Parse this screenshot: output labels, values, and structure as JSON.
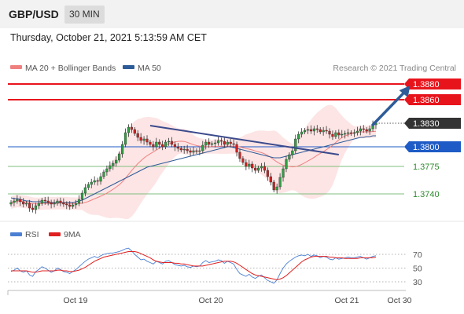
{
  "header": {
    "symbol": "GBP/USD",
    "timeframe": "30 MIN"
  },
  "timestamp": "Thursday, October 21, 2021 5:13:59 AM CET",
  "legend": {
    "ma20_bb": "MA 20 + Bollinger Bands",
    "ma50": "MA 50",
    "ma20_color": "#f08080",
    "ma50_color": "#2e5c99"
  },
  "credit": "Research © 2021 Trading Central",
  "rsi_legend": {
    "rsi": "RSI",
    "ma9": "9MA",
    "rsi_color": "#4a7fd4",
    "ma9_color": "#e02020"
  },
  "colors": {
    "resistance": "#e8141c",
    "pivot": "#1e5bc6",
    "support": "#7fbf7f",
    "support_text": "#2e8b2e",
    "current": "#333333",
    "arrow": "#2e5c99",
    "candle_up": "#2ea043",
    "candle_down": "#cc2222",
    "band_fill": "#fde0e0"
  },
  "chart_data": [
    {
      "type": "candlestick",
      "ylim": [
        3.5,
        3.89
      ],
      "x_ticks": [
        "Oct 19",
        "Oct 20",
        "Oct 21",
        "Oct 30"
      ],
      "levels": [
        {
          "label": "1.3880",
          "value": 1.388,
          "kind": "resistance"
        },
        {
          "label": "1.3860",
          "value": 1.386,
          "kind": "resistance"
        },
        {
          "label": "1.3830",
          "value": 1.383,
          "kind": "current"
        },
        {
          "label": "1.3800",
          "value": 1.38,
          "kind": "pivot"
        },
        {
          "label": "1.3775",
          "value": 1.3775,
          "kind": "support"
        },
        {
          "label": "1.3740",
          "value": 1.374,
          "kind": "support"
        }
      ],
      "close": [
        1.3729,
        1.3731,
        1.3733,
        1.373,
        1.3727,
        1.3728,
        1.3722,
        1.372,
        1.3725,
        1.3728,
        1.3732,
        1.3731,
        1.3729,
        1.3727,
        1.3728,
        1.3731,
        1.3729,
        1.3727,
        1.3726,
        1.3724,
        1.3726,
        1.3728,
        1.3733,
        1.3741,
        1.3748,
        1.3752,
        1.3755,
        1.3757,
        1.3756,
        1.3762,
        1.3768,
        1.3772,
        1.3776,
        1.3779,
        1.3783,
        1.3791,
        1.3803,
        1.3818,
        1.3825,
        1.3822,
        1.3817,
        1.3812,
        1.3808,
        1.381,
        1.3806,
        1.3803,
        1.38,
        1.3806,
        1.3803,
        1.38,
        1.3806,
        1.3807,
        1.3803,
        1.38,
        1.3798,
        1.3796,
        1.3797,
        1.3795,
        1.3793,
        1.3795,
        1.3794,
        1.3795,
        1.3802,
        1.3806,
        1.3803,
        1.3804,
        1.3805,
        1.3808,
        1.3807,
        1.3803,
        1.3806,
        1.3804,
        1.3803,
        1.3793,
        1.3785,
        1.378,
        1.3775,
        1.3778,
        1.3773,
        1.377,
        1.3773,
        1.3775,
        1.377,
        1.3762,
        1.3755,
        1.3745,
        1.3749,
        1.3761,
        1.3772,
        1.3784,
        1.379,
        1.3795,
        1.381,
        1.3816,
        1.3819,
        1.3821,
        1.3822,
        1.382,
        1.3823,
        1.3822,
        1.3819,
        1.3821,
        1.382,
        1.3816,
        1.3813,
        1.3818,
        1.3815,
        1.3816,
        1.3817,
        1.3818,
        1.3817,
        1.3818,
        1.382,
        1.3823,
        1.3822,
        1.382,
        1.3823,
        1.3828,
        1.383
      ],
      "ma50": [
        1.3735,
        1.3734,
        1.3734,
        1.3733,
        1.3732,
        1.3731,
        1.3731,
        1.373,
        1.373,
        1.373,
        1.373,
        1.3729,
        1.3729,
        1.3729,
        1.3729,
        1.3729,
        1.3729,
        1.3729,
        1.3729,
        1.3729,
        1.3729,
        1.373,
        1.3731,
        1.3732,
        1.3734,
        1.3736,
        1.3738,
        1.374,
        1.3742,
        1.3744,
        1.3746,
        1.3748,
        1.375,
        1.3752,
        1.3754,
        1.3756,
        1.3758,
        1.376,
        1.3762,
        1.3764,
        1.3766,
        1.3768,
        1.377,
        1.3772,
        1.3774,
        1.3775,
        1.3776,
        1.3777,
        1.3778,
        1.3779,
        1.378,
        1.3781,
        1.3782,
        1.3783,
        1.3784,
        1.3785,
        1.3786,
        1.3787,
        1.3788,
        1.3789,
        1.379,
        1.3791,
        1.3792,
        1.3793,
        1.3794,
        1.3795,
        1.3796,
        1.3797,
        1.3798,
        1.3799,
        1.38,
        1.38,
        1.3799,
        1.3798,
        1.3797,
        1.3796,
        1.3795,
        1.3794,
        1.3793,
        1.3792,
        1.3791,
        1.379,
        1.3789,
        1.3788,
        1.3787,
        1.3786,
        1.3786,
        1.3786,
        1.3787,
        1.3788,
        1.3789,
        1.379,
        1.3791,
        1.3792,
        1.3793,
        1.3794,
        1.3795,
        1.3796,
        1.3797,
        1.3798,
        1.3799,
        1.38,
        1.3801,
        1.3802,
        1.3803,
        1.3804,
        1.3805,
        1.3806,
        1.3807,
        1.3808,
        1.3809,
        1.381,
        1.3811,
        1.3812,
        1.3812,
        1.3813,
        1.3813,
        1.3814,
        1.3814
      ],
      "trendline": {
        "from": [
          45,
          1.3827
        ],
        "to": [
          106,
          1.379
        ]
      },
      "arrow": {
        "from": [
          117,
          1.3828
        ],
        "to": [
          124,
          1.388
        ]
      }
    },
    {
      "type": "line",
      "ylim": [
        20,
        80
      ],
      "y_ticks": [
        "70",
        "50",
        "30"
      ],
      "rsi": [
        45,
        47,
        50,
        46,
        44,
        46,
        40,
        38,
        45,
        48,
        52,
        50,
        47,
        44,
        46,
        50,
        48,
        45,
        44,
        42,
        45,
        48,
        52,
        56,
        60,
        63,
        65,
        67,
        65,
        68,
        70,
        71,
        72,
        72,
        73,
        74,
        76,
        78,
        79,
        75,
        70,
        66,
        62,
        63,
        60,
        58,
        56,
        60,
        58,
        56,
        60,
        61,
        58,
        55,
        54,
        53,
        54,
        52,
        51,
        53,
        52,
        53,
        58,
        61,
        58,
        59,
        60,
        62,
        61,
        57,
        60,
        58,
        56,
        48,
        42,
        40,
        38,
        41,
        37,
        35,
        38,
        40,
        36,
        32,
        30,
        28,
        33,
        42,
        50,
        56,
        60,
        63,
        66,
        68,
        69,
        68,
        70,
        67,
        69,
        68,
        65,
        67,
        66,
        63,
        62,
        65,
        63,
        64,
        65,
        66,
        65,
        65,
        66,
        67,
        65,
        63,
        65,
        67,
        68
      ],
      "ma9": [
        46,
        46,
        46,
        46,
        46,
        46,
        45,
        44,
        44,
        45,
        46,
        46,
        46,
        46,
        46,
        47,
        47,
        46,
        46,
        45,
        45,
        46,
        47,
        49,
        51,
        54,
        57,
        60,
        62,
        64,
        66,
        67,
        68,
        69,
        70,
        71,
        72,
        73,
        74,
        74,
        74,
        73,
        71,
        69,
        67,
        65,
        62,
        60,
        59,
        58,
        58,
        58,
        58,
        57,
        57,
        56,
        56,
        55,
        54,
        53,
        53,
        53,
        53,
        54,
        55,
        56,
        57,
        58,
        59,
        60,
        60,
        60,
        59,
        57,
        54,
        51,
        48,
        45,
        42,
        40,
        39,
        38,
        37,
        36,
        35,
        34,
        33,
        34,
        36,
        39,
        43,
        47,
        51,
        55,
        59,
        62,
        64,
        66,
        67,
        67,
        67,
        67,
        67,
        66,
        66,
        65,
        65,
        65,
        64,
        64,
        64,
        64,
        64,
        65,
        65,
        65,
        65,
        65,
        66
      ]
    }
  ]
}
